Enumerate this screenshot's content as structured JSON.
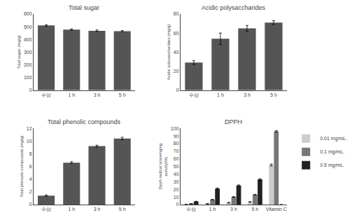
{
  "chart_data": [
    {
      "type": "bar",
      "title": "Total sugar",
      "categories": [
        "수삼",
        "1 h",
        "3 h",
        "5 h"
      ],
      "values": [
        510,
        477,
        468,
        465
      ],
      "errors": [
        6,
        5,
        7,
        5
      ],
      "ylabel": "Total sugar (mg/g)",
      "color": "#555555",
      "ylim": [
        0,
        600
      ],
      "yticks": [
        0,
        100,
        200,
        300,
        400,
        500,
        600
      ],
      "grid": false
    },
    {
      "type": "bar",
      "title": "Acidic polysaccharides",
      "categories": [
        "수삼",
        "1 h",
        "3 h",
        "5 h"
      ],
      "values": [
        29,
        54,
        65,
        71
      ],
      "errors": [
        2,
        6,
        3,
        2
      ],
      "ylabel": "Acidic polysaccharides (mg/g)",
      "color": "#555555",
      "ylim": [
        0,
        80
      ],
      "yticks": [
        0,
        20,
        40,
        60,
        80
      ],
      "grid": false
    },
    {
      "type": "bar",
      "title": "Total phenolic compounds",
      "categories": [
        "수삼",
        "1 h",
        "3 h",
        "5 h"
      ],
      "values": [
        1.4,
        6.6,
        9.2,
        10.4
      ],
      "errors": [
        0.1,
        0.15,
        0.15,
        0.2
      ],
      "ylabel": "Total phenolic compounds (mg/g)",
      "color": "#555555",
      "ylim": [
        0,
        12
      ],
      "yticks": [
        0,
        2,
        4,
        6,
        8,
        10,
        12
      ],
      "grid": false
    },
    {
      "type": "bar",
      "title": "DPPH",
      "categories": [
        "수삼",
        "1 h",
        "3 h",
        "5 h",
        "Vitamin C"
      ],
      "ylabel": "Dpph radical scavenging\nactivity(%)",
      "series": [
        {
          "name": "0.01 mg/mL.",
          "color": "#cccccc",
          "values": [
            0.3,
            1.0,
            2.5,
            3.5,
            52
          ],
          "errors": [
            0.1,
            0.3,
            0.4,
            0.4,
            1.2
          ]
        },
        {
          "name": "0.1 mg/mL.",
          "color": "#777777",
          "values": [
            1.0,
            6.5,
            10.0,
            13.0,
            96
          ],
          "errors": [
            0.2,
            0.4,
            0.5,
            0.5,
            1.0
          ]
        },
        {
          "name": "0.5 mg/mL.",
          "color": "#222222",
          "values": [
            4.0,
            21.0,
            25.0,
            33.0,
            0
          ],
          "errors": [
            0.3,
            0.8,
            0.8,
            1.0,
            0
          ]
        }
      ],
      "ylim": [
        0,
        100
      ],
      "yticks": [
        0,
        10,
        20,
        30,
        40,
        50,
        60,
        70,
        80,
        90,
        100
      ],
      "grid": false,
      "legend": "right"
    }
  ]
}
